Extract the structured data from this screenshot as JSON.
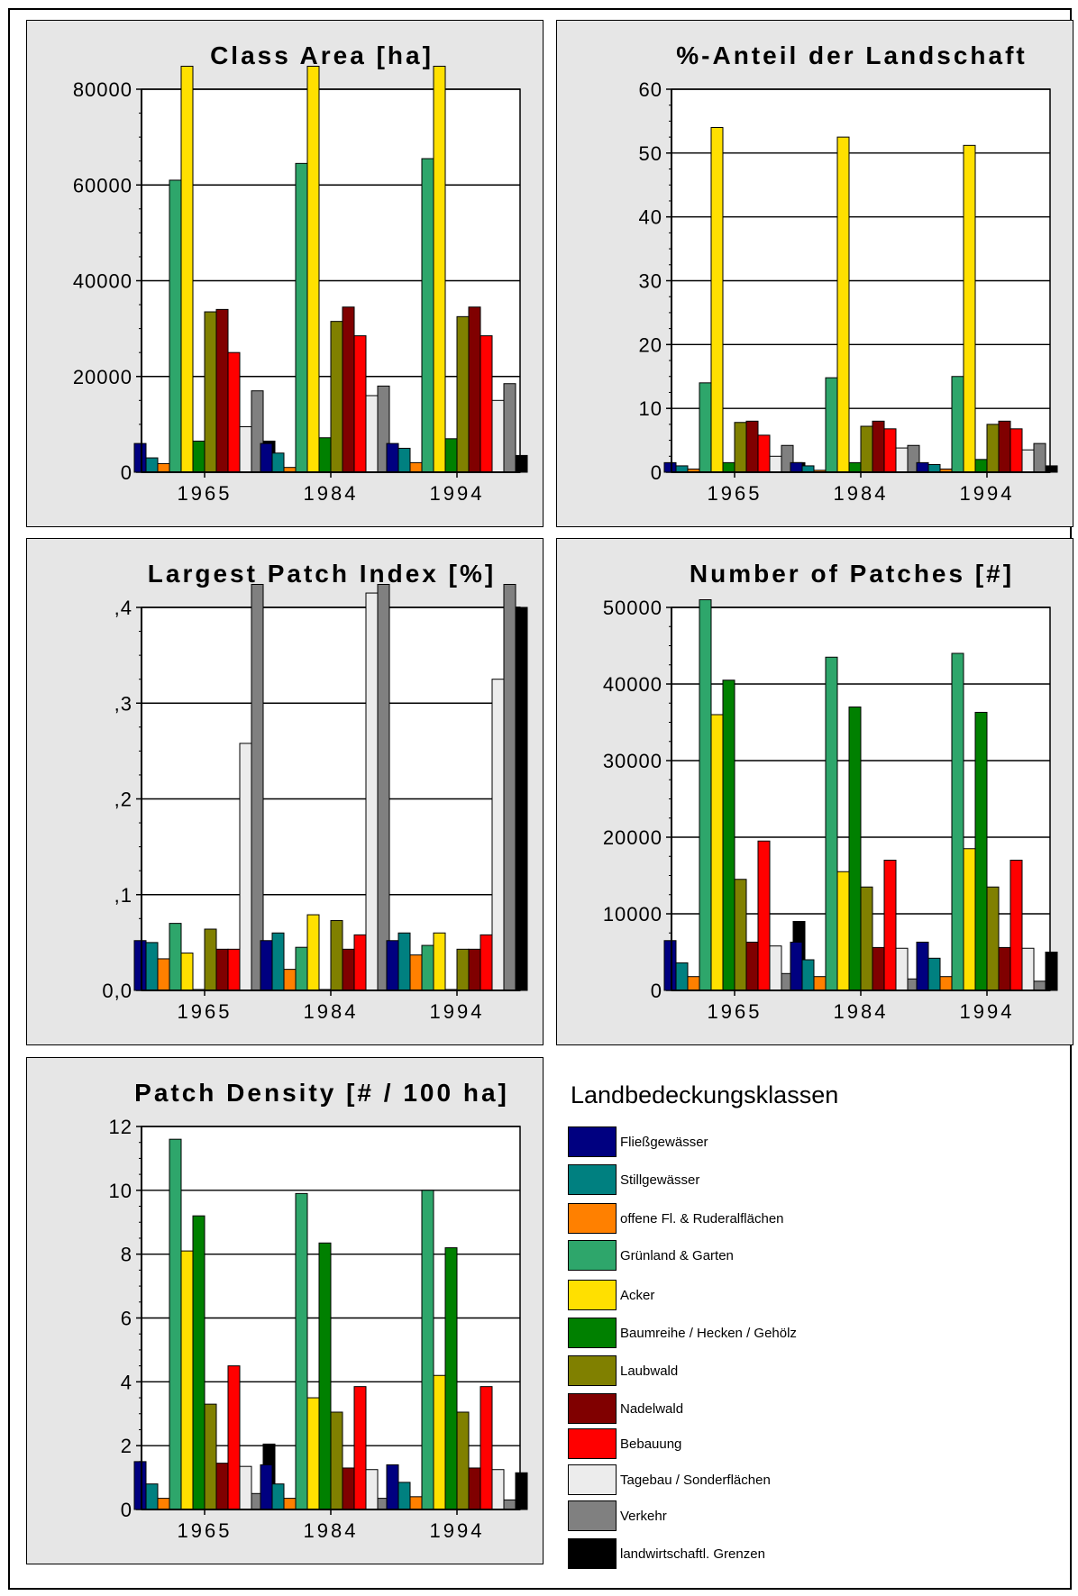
{
  "legend": {
    "title": "Landbedeckungsklassen",
    "items": [
      {
        "label": "Fließgewässer",
        "color": "#000080"
      },
      {
        "label": "Stillgewässer",
        "color": "#008080"
      },
      {
        "label": "offene Fl. & Ruderalflächen",
        "color": "#ff8000"
      },
      {
        "label": "Grünland & Garten",
        "color": "#2ea66b"
      },
      {
        "label": "Acker",
        "color": "#ffe000"
      },
      {
        "label": "Baumreihe / Hecken / Gehölz",
        "color": "#008000"
      },
      {
        "label": "Laubwald",
        "color": "#808000"
      },
      {
        "label": "Nadelwald",
        "color": "#800000"
      },
      {
        "label": "Bebauung",
        "color": "#ff0000"
      },
      {
        "label": "Tagebau / Sonderflächen",
        "color": "#ececec"
      },
      {
        "label": "Verkehr",
        "color": "#808080"
      },
      {
        "label": "landwirtschaftl. Grenzen",
        "color": "#000000"
      }
    ]
  },
  "chart_data": [
    {
      "type": "bar",
      "title": "Class Area [ha]",
      "categories": [
        "1965",
        "1984",
        "1994"
      ],
      "ylim": [
        0,
        80000
      ],
      "yticks": [
        "0",
        "20000",
        "40000",
        "60000",
        "80000"
      ],
      "ytick_values": [
        0,
        20000,
        40000,
        60000,
        80000
      ],
      "grid": true,
      "series": [
        {
          "name": "Fließgewässer",
          "values": [
            6000,
            6000,
            6000
          ]
        },
        {
          "name": "Stillgewässer",
          "values": [
            3000,
            4000,
            5000
          ]
        },
        {
          "name": "offene Fl. & Ruderalflächen",
          "values": [
            1800,
            1000,
            2000
          ]
        },
        {
          "name": "Grünland & Garten",
          "values": [
            61000,
            64500,
            65500
          ]
        },
        {
          "name": "Acker",
          "values": [
            85000,
            85000,
            85000
          ]
        },
        {
          "name": "Baumreihe / Hecken / Gehölz",
          "values": [
            6500,
            7200,
            7000
          ]
        },
        {
          "name": "Laubwald",
          "values": [
            33500,
            31500,
            32500
          ]
        },
        {
          "name": "Nadelwald",
          "values": [
            34000,
            34500,
            34500
          ]
        },
        {
          "name": "Bebauung",
          "values": [
            25000,
            28500,
            28500
          ]
        },
        {
          "name": "Tagebau / Sonderflächen",
          "values": [
            9500,
            16000,
            15000
          ]
        },
        {
          "name": "Verkehr",
          "values": [
            17000,
            18000,
            18500
          ]
        },
        {
          "name": "landwirtschaftl. Grenzen",
          "values": [
            6500,
            2000,
            3500
          ]
        }
      ]
    },
    {
      "type": "bar",
      "title": "%-Anteil der Landschaft",
      "categories": [
        "1965",
        "1984",
        "1994"
      ],
      "ylim": [
        0,
        60
      ],
      "yticks": [
        "0",
        "10",
        "20",
        "30",
        "40",
        "50",
        "60"
      ],
      "ytick_values": [
        0,
        10,
        20,
        30,
        40,
        50,
        60
      ],
      "grid": true,
      "series": [
        {
          "name": "Fließgewässer",
          "values": [
            1.5,
            1.5,
            1.5
          ]
        },
        {
          "name": "Stillgewässer",
          "values": [
            1,
            1,
            1.2
          ]
        },
        {
          "name": "offene Fl. & Ruderalflächen",
          "values": [
            0.5,
            0.3,
            0.5
          ]
        },
        {
          "name": "Grünland & Garten",
          "values": [
            14,
            14.8,
            15
          ]
        },
        {
          "name": "Acker",
          "values": [
            54,
            52.5,
            51.2
          ]
        },
        {
          "name": "Baumreihe / Hecken / Gehölz",
          "values": [
            1.5,
            1.5,
            2
          ]
        },
        {
          "name": "Laubwald",
          "values": [
            7.8,
            7.2,
            7.5
          ]
        },
        {
          "name": "Nadelwald",
          "values": [
            8,
            8,
            8
          ]
        },
        {
          "name": "Bebauung",
          "values": [
            5.8,
            6.8,
            6.8
          ]
        },
        {
          "name": "Tagebau / Sonderflächen",
          "values": [
            2.5,
            3.8,
            3.5
          ]
        },
        {
          "name": "Verkehr",
          "values": [
            4.2,
            4.2,
            4.5
          ]
        },
        {
          "name": "landwirtschaftl. Grenzen",
          "values": [
            1.5,
            0.6,
            1
          ]
        }
      ]
    },
    {
      "type": "bar",
      "title": "Largest Patch Index [%]",
      "categories": [
        "1965",
        "1984",
        "1994"
      ],
      "ylim": [
        0,
        0.4
      ],
      "yticks": [
        "0,0",
        ",1",
        ",2",
        ",3",
        ",4"
      ],
      "ytick_values": [
        0,
        0.1,
        0.2,
        0.3,
        0.4
      ],
      "grid": true,
      "series": [
        {
          "name": "Fließgewässer",
          "values": [
            0.052,
            0.052,
            0.052
          ]
        },
        {
          "name": "Stillgewässer",
          "values": [
            0.05,
            0.06,
            0.06
          ]
        },
        {
          "name": "offene Fl. & Ruderalflächen",
          "values": [
            0.033,
            0.022,
            0.037
          ]
        },
        {
          "name": "Grünland & Garten",
          "values": [
            0.07,
            0.045,
            0.047
          ]
        },
        {
          "name": "Acker",
          "values": [
            0.039,
            0.079,
            0.06
          ]
        },
        {
          "name": "Baumreihe / Hecken / Gehölz",
          "values": [
            0,
            0,
            0
          ]
        },
        {
          "name": "Laubwald",
          "values": [
            0.064,
            0.073,
            0.043
          ]
        },
        {
          "name": "Nadelwald",
          "values": [
            0.043,
            0.043,
            0.043
          ]
        },
        {
          "name": "Bebauung",
          "values": [
            0.043,
            0.058,
            0.058
          ]
        },
        {
          "name": "Tagebau / Sonderflächen",
          "values": [
            0.258,
            0.415,
            0.325
          ]
        },
        {
          "name": "Verkehr",
          "values": [
            0.45,
            0.45,
            0.45
          ]
        },
        {
          "name": "landwirtschaftl. Grenzen",
          "values": [
            0.001,
            0.001,
            0.4
          ]
        }
      ]
    },
    {
      "type": "bar",
      "title": "Number of Patches [#]",
      "categories": [
        "1965",
        "1984",
        "1994"
      ],
      "ylim": [
        0,
        50000
      ],
      "yticks": [
        "0",
        "10000",
        "20000",
        "30000",
        "40000",
        "50000"
      ],
      "ytick_values": [
        0,
        10000,
        20000,
        30000,
        40000,
        50000
      ],
      "grid": true,
      "series": [
        {
          "name": "Fließgewässer",
          "values": [
            6500,
            6300,
            6300
          ]
        },
        {
          "name": "Stillgewässer",
          "values": [
            3600,
            4000,
            4200
          ]
        },
        {
          "name": "offene Fl. & Ruderalflächen",
          "values": [
            1800,
            1800,
            1800
          ]
        },
        {
          "name": "Grünland & Garten",
          "values": [
            51000,
            43500,
            44000
          ]
        },
        {
          "name": "Acker",
          "values": [
            36000,
            15500,
            18500
          ]
        },
        {
          "name": "Baumreihe / Hecken / Gehölz",
          "values": [
            40500,
            37000,
            36300
          ]
        },
        {
          "name": "Laubwald",
          "values": [
            14500,
            13500,
            13500
          ]
        },
        {
          "name": "Nadelwald",
          "values": [
            6300,
            5600,
            5600
          ]
        },
        {
          "name": "Bebauung",
          "values": [
            19500,
            17000,
            17000
          ]
        },
        {
          "name": "Tagebau / Sonderflächen",
          "values": [
            5800,
            5500,
            5500
          ]
        },
        {
          "name": "Verkehr",
          "values": [
            2200,
            1500,
            1200
          ]
        },
        {
          "name": "landwirtschaftl. Grenzen",
          "values": [
            9000,
            2500,
            5000
          ]
        }
      ]
    },
    {
      "type": "bar",
      "title": "Patch Density [# / 100 ha]",
      "categories": [
        "1965",
        "1984",
        "1994"
      ],
      "ylim": [
        0,
        12
      ],
      "yticks": [
        "0",
        "2",
        "4",
        "6",
        "8",
        "10",
        "12"
      ],
      "ytick_values": [
        0,
        2,
        4,
        6,
        8,
        10,
        12
      ],
      "grid": true,
      "series": [
        {
          "name": "Fließgewässer",
          "values": [
            1.5,
            1.4,
            1.4
          ]
        },
        {
          "name": "Stillgewässer",
          "values": [
            0.8,
            0.8,
            0.85
          ]
        },
        {
          "name": "offene Fl. & Ruderalflächen",
          "values": [
            0.35,
            0.35,
            0.4
          ]
        },
        {
          "name": "Grünland & Garten",
          "values": [
            11.6,
            9.9,
            10
          ]
        },
        {
          "name": "Acker",
          "values": [
            8.1,
            3.5,
            4.2
          ]
        },
        {
          "name": "Baumreihe / Hecken / Gehölz",
          "values": [
            9.2,
            8.35,
            8.2
          ]
        },
        {
          "name": "Laubwald",
          "values": [
            3.3,
            3.05,
            3.05
          ]
        },
        {
          "name": "Nadelwald",
          "values": [
            1.45,
            1.3,
            1.3
          ]
        },
        {
          "name": "Bebauung",
          "values": [
            4.5,
            3.85,
            3.85
          ]
        },
        {
          "name": "Tagebau / Sonderflächen",
          "values": [
            1.35,
            1.25,
            1.25
          ]
        },
        {
          "name": "Verkehr",
          "values": [
            0.5,
            0.35,
            0.3
          ]
        },
        {
          "name": "landwirtschaftl. Grenzen",
          "values": [
            2.05,
            0.5,
            1.15
          ]
        }
      ]
    }
  ]
}
